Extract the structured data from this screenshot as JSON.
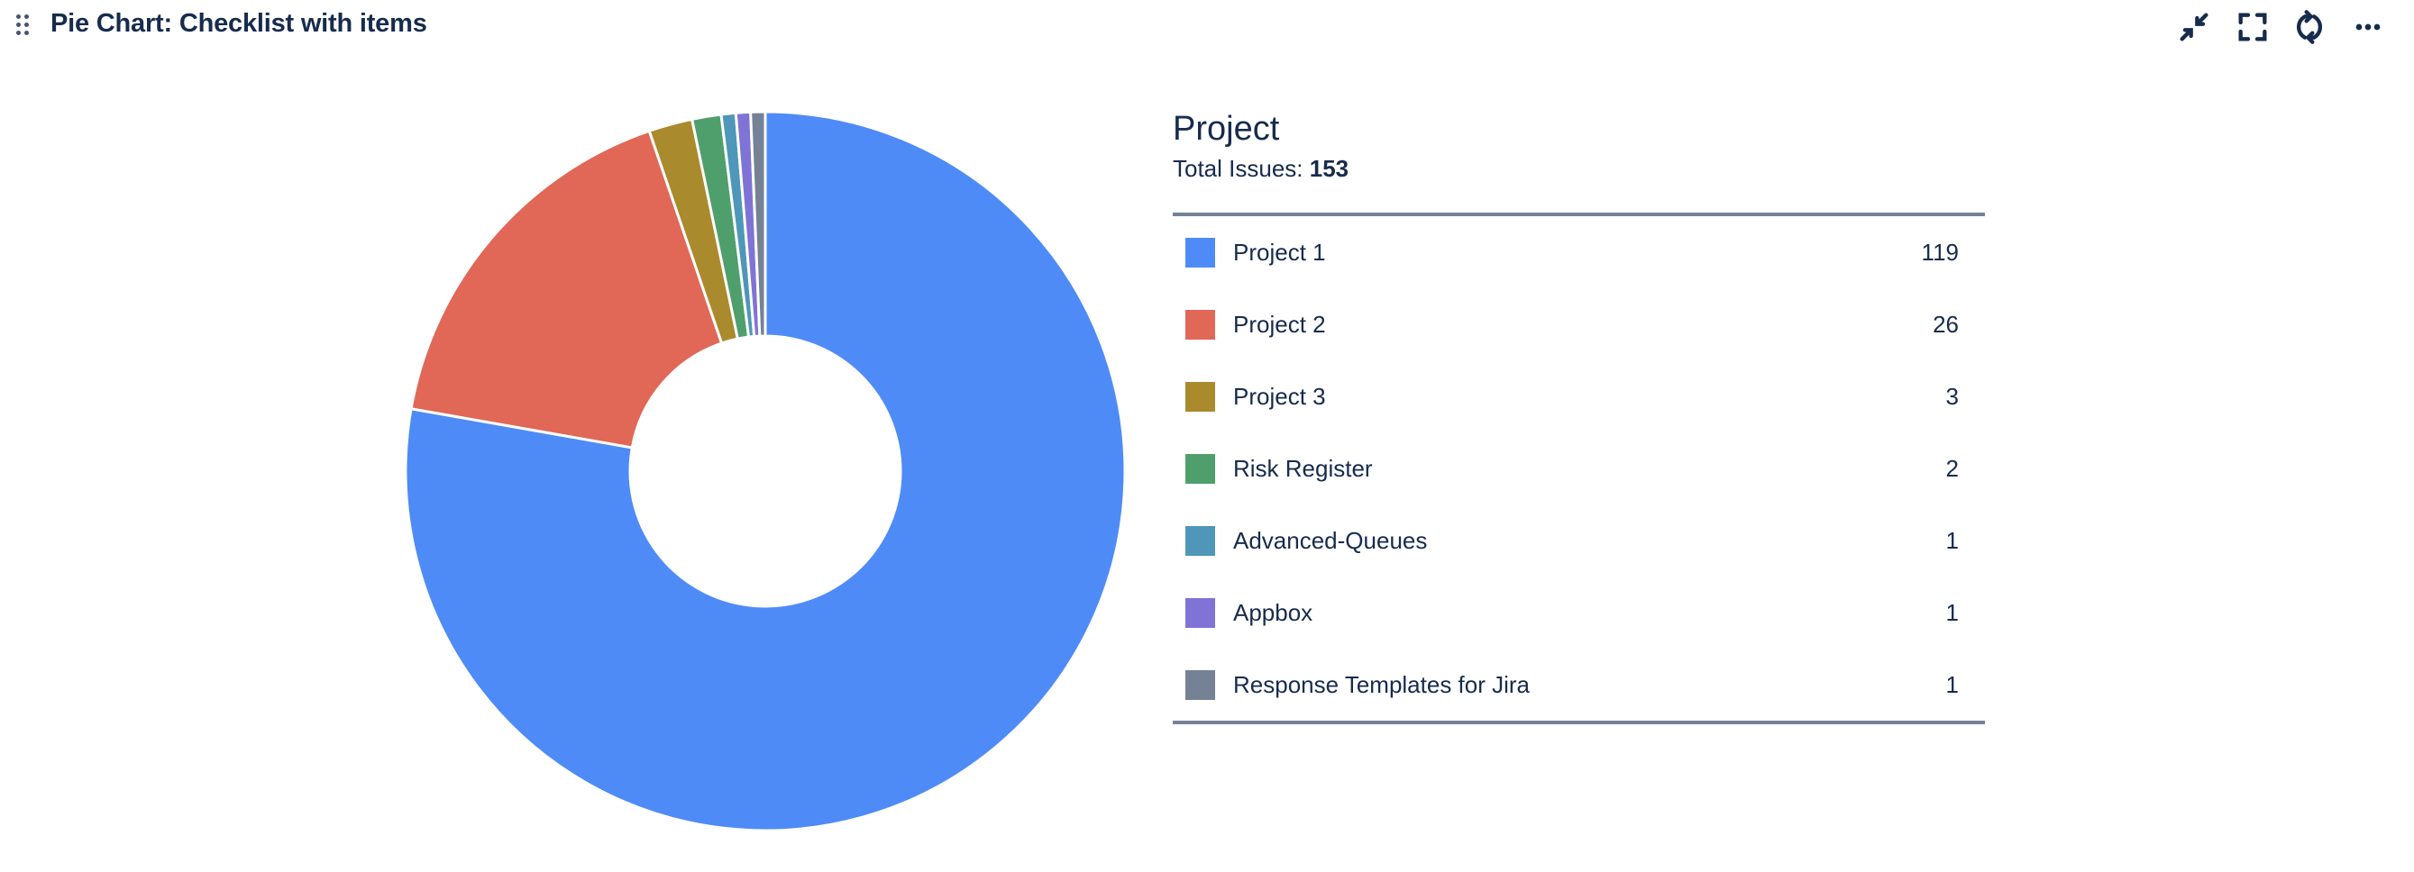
{
  "header": {
    "title": "Pie Chart: Checklist with items",
    "icons": [
      "drag-handle-icon",
      "minimize-icon",
      "fullscreen-icon",
      "refresh-icon",
      "more-icon"
    ]
  },
  "legend": {
    "title": "Project",
    "total_label": "Total Issues:",
    "total_value": "153"
  },
  "chart_data": {
    "type": "pie",
    "variant": "donut",
    "title": "Project",
    "start": "top, clockwise",
    "categories": [
      "Project 1",
      "Project 2",
      "Project 3",
      "Risk Register",
      "Advanced-Queues",
      "Appbox",
      "Response Templates for Jira"
    ],
    "values": [
      119,
      26,
      3,
      2,
      1,
      1,
      1
    ],
    "colors": [
      "#4f8bf7",
      "#e16757",
      "#a98a2d",
      "#4f9f6c",
      "#4e97b9",
      "#8073d6",
      "#758195"
    ],
    "legend_placement": "right"
  }
}
